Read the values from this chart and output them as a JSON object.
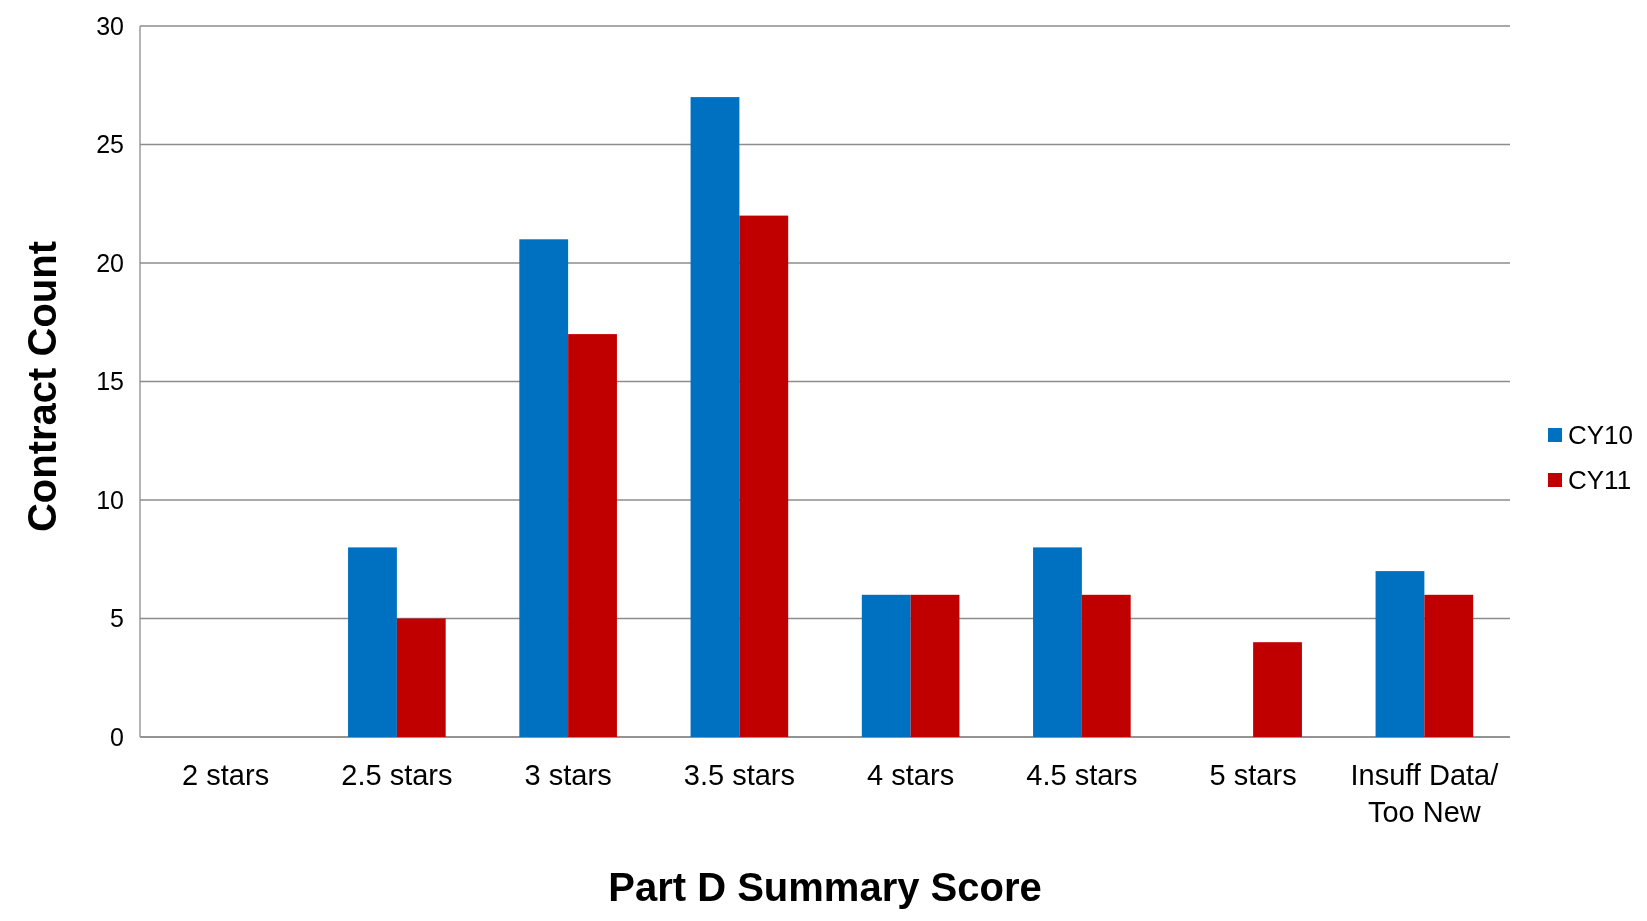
{
  "chart_data": {
    "type": "bar",
    "xlabel": "Part D Summary Score",
    "ylabel": "Contract Count",
    "categories": [
      "2 stars",
      "2.5 stars",
      "3 stars",
      "3.5 stars",
      "4 stars",
      "4.5 stars",
      "5 stars",
      "Insuff Data/\nToo New"
    ],
    "series": [
      {
        "name": "CY10",
        "color": "#0070c0",
        "values": [
          0,
          8,
          21,
          27,
          6,
          8,
          0,
          7
        ]
      },
      {
        "name": "CY11",
        "color": "#c00000",
        "values": [
          0,
          5,
          17,
          22,
          6,
          6,
          4,
          6
        ]
      }
    ],
    "ylim": [
      0,
      30
    ],
    "yticks": [
      0,
      5,
      10,
      15,
      20,
      25,
      30
    ],
    "grid": "y",
    "legend": "right"
  }
}
